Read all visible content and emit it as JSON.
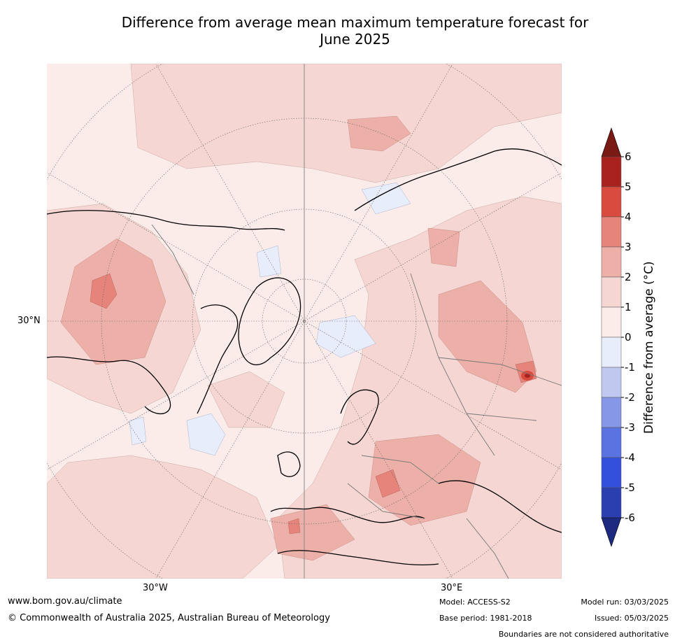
{
  "title_line1": "Difference from average mean maximum temperature forecast for",
  "title_line2": "June 2025",
  "map": {
    "lat_label": "30°N",
    "lon_labels": [
      "30°W",
      "30°E"
    ]
  },
  "colorbar": {
    "label": "Difference from average (°C)",
    "ticks": [
      "6",
      "5",
      "4",
      "3",
      "2",
      "1",
      "0",
      "-1",
      "-2",
      "-3",
      "-4",
      "-5",
      "-6"
    ],
    "colors": [
      "#a8231f",
      "#d94b3f",
      "#e6837a",
      "#edb0a8",
      "#f5d6d2",
      "#fcece9",
      "#e8edfb",
      "#c0c8f0",
      "#8797e8",
      "#5b73e0",
      "#3350dc",
      "#2b3fb0"
    ],
    "over_color": "#7a1a14",
    "under_color": "#1e2a80"
  },
  "footer": {
    "url": "www.bom.gov.au/climate",
    "copyright": "© Commonwealth of Australia 2025, Australian Bureau of Meteorology",
    "model": "Model: ACCESS-S2",
    "base_period": "Base period: 1981-2018",
    "model_run": "Model run: 03/03/2025",
    "issued": "Issued: 05/03/2025",
    "disclaimer": "Boundaries are not considered authoritative"
  }
}
